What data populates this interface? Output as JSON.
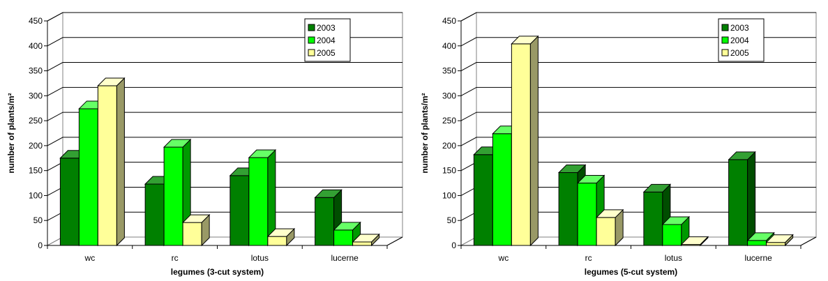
{
  "chart_data": [
    {
      "type": "bar",
      "xlabel": "legumes (3-cut system)",
      "ylabel": "number of plants/m²",
      "categories": [
        "wc",
        "rc",
        "lotus",
        "lucerne"
      ],
      "ylim": [
        0,
        450
      ],
      "yticks": [
        0,
        50,
        100,
        150,
        200,
        250,
        300,
        350,
        400,
        450
      ],
      "grid": true,
      "legend": "top-right",
      "series": [
        {
          "name": "2003",
          "values": [
            175,
            123,
            140,
            96
          ]
        },
        {
          "name": "2004",
          "values": [
            274,
            197,
            176,
            31
          ]
        },
        {
          "name": "2005",
          "values": [
            320,
            46,
            18,
            7
          ]
        }
      ]
    },
    {
      "type": "bar",
      "xlabel": "legumes (5-cut system)",
      "ylabel": "number of plants/m²",
      "categories": [
        "wc",
        "rc",
        "lotus",
        "lucerne"
      ],
      "ylim": [
        0,
        450
      ],
      "yticks": [
        0,
        50,
        100,
        150,
        200,
        250,
        300,
        350,
        400,
        450
      ],
      "grid": true,
      "legend": "top-right",
      "series": [
        {
          "name": "2003",
          "values": [
            182,
            146,
            107,
            172
          ]
        },
        {
          "name": "2004",
          "values": [
            224,
            125,
            42,
            10
          ]
        },
        {
          "name": "2005",
          "values": [
            404,
            56,
            2,
            6
          ]
        }
      ]
    }
  ],
  "colors": {
    "series": [
      {
        "front": "#008000",
        "side": "#004d00",
        "top": "#33a033"
      },
      {
        "front": "#00ff00",
        "side": "#009900",
        "top": "#66ff66"
      },
      {
        "front": "#ffff99",
        "side": "#999966",
        "top": "#ffffcc"
      }
    ],
    "grid": "#000000",
    "wall": "#ffffff"
  }
}
